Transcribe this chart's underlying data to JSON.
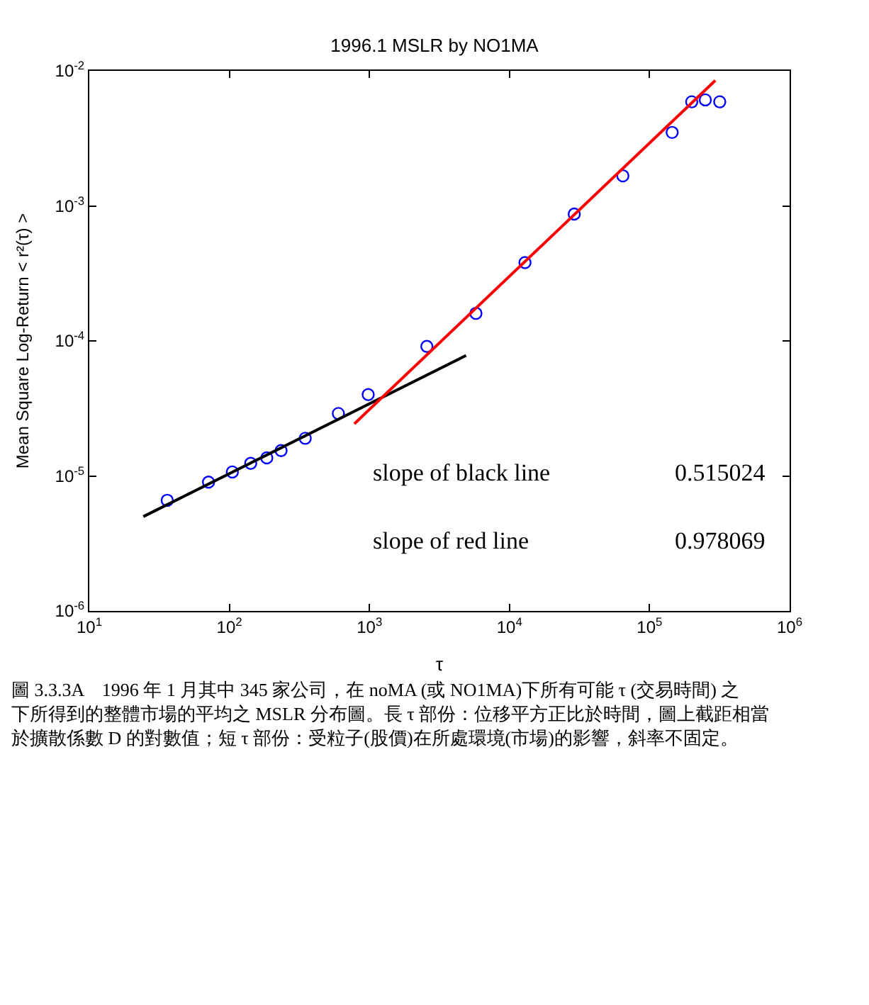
{
  "chart_data": {
    "type": "scatter",
    "title": "1996.1 MSLR by NO1MA",
    "xlabel": "τ",
    "ylabel": "Mean Square Log-Return < r²(τ) >",
    "log": "xy",
    "xlim": [
      10,
      1000000
    ],
    "ylim": [
      1e-06,
      0.01
    ],
    "xticks": [
      {
        "value": 10,
        "label": "10$^{1}$"
      },
      {
        "value": 100,
        "label": "10$^{2}$"
      },
      {
        "value": 1000,
        "label": "10$^{3}$"
      },
      {
        "value": 10000,
        "label": "10$^{4}$"
      },
      {
        "value": 100000,
        "label": "10$^{5}$"
      },
      {
        "value": 1000000,
        "label": "10$^{6}$"
      }
    ],
    "yticks": [
      {
        "value": 1e-06,
        "label": "10$^{-6}$"
      },
      {
        "value": 1e-05,
        "label": "10$^{-5}$"
      },
      {
        "value": 0.0001,
        "label": "10$^{-4}$"
      },
      {
        "value": 0.001,
        "label": "10$^{-3}$"
      },
      {
        "value": 0.01,
        "label": "10$^{-2}$"
      }
    ],
    "series": [
      {
        "marker": "circle",
        "color": "#0000ff",
        "x": [
          36,
          71,
          105,
          142,
          185,
          234,
          348,
          600,
          980,
          2570,
          5760,
          12900,
          29000,
          64500,
          145000,
          200000,
          250000,
          317000
        ],
        "values": [
          6.6e-06,
          9e-06,
          1.07e-05,
          1.24e-05,
          1.36e-05,
          1.54e-05,
          1.9e-05,
          2.9e-05,
          4e-05,
          9.1e-05,
          0.00016,
          0.00038,
          0.00087,
          0.00167,
          0.0035,
          0.0059,
          0.0061,
          0.0059
        ]
      },
      {
        "type": "line",
        "color": "#000000",
        "x": [
          24.3,
          4900
        ],
        "values": [
          5e-06,
          7.8e-05
        ]
      },
      {
        "type": "line",
        "color": "#ff0000",
        "x": [
          780,
          295000
        ],
        "values": [
          2.43e-05,
          0.0085
        ]
      }
    ],
    "annotations": [
      "slope of black line",
      "0.515024",
      "slope of red line",
      "0.978069",
      "圖 3.3.3A　1996 年 1 月其中 345 家公司，在 noMA (或 NO1MA)下所有可能 τ (交易時間) 之下所得到的整體市場的平均之 MSLR 分布圖。長 τ 部份：位移平方正比於時間，圖上截距相當於擴散係數 D 的對數值；短 τ 部份：受粒子(股價)在所處環境(市場)的影響，斜率不固定。"
    ]
  }
}
